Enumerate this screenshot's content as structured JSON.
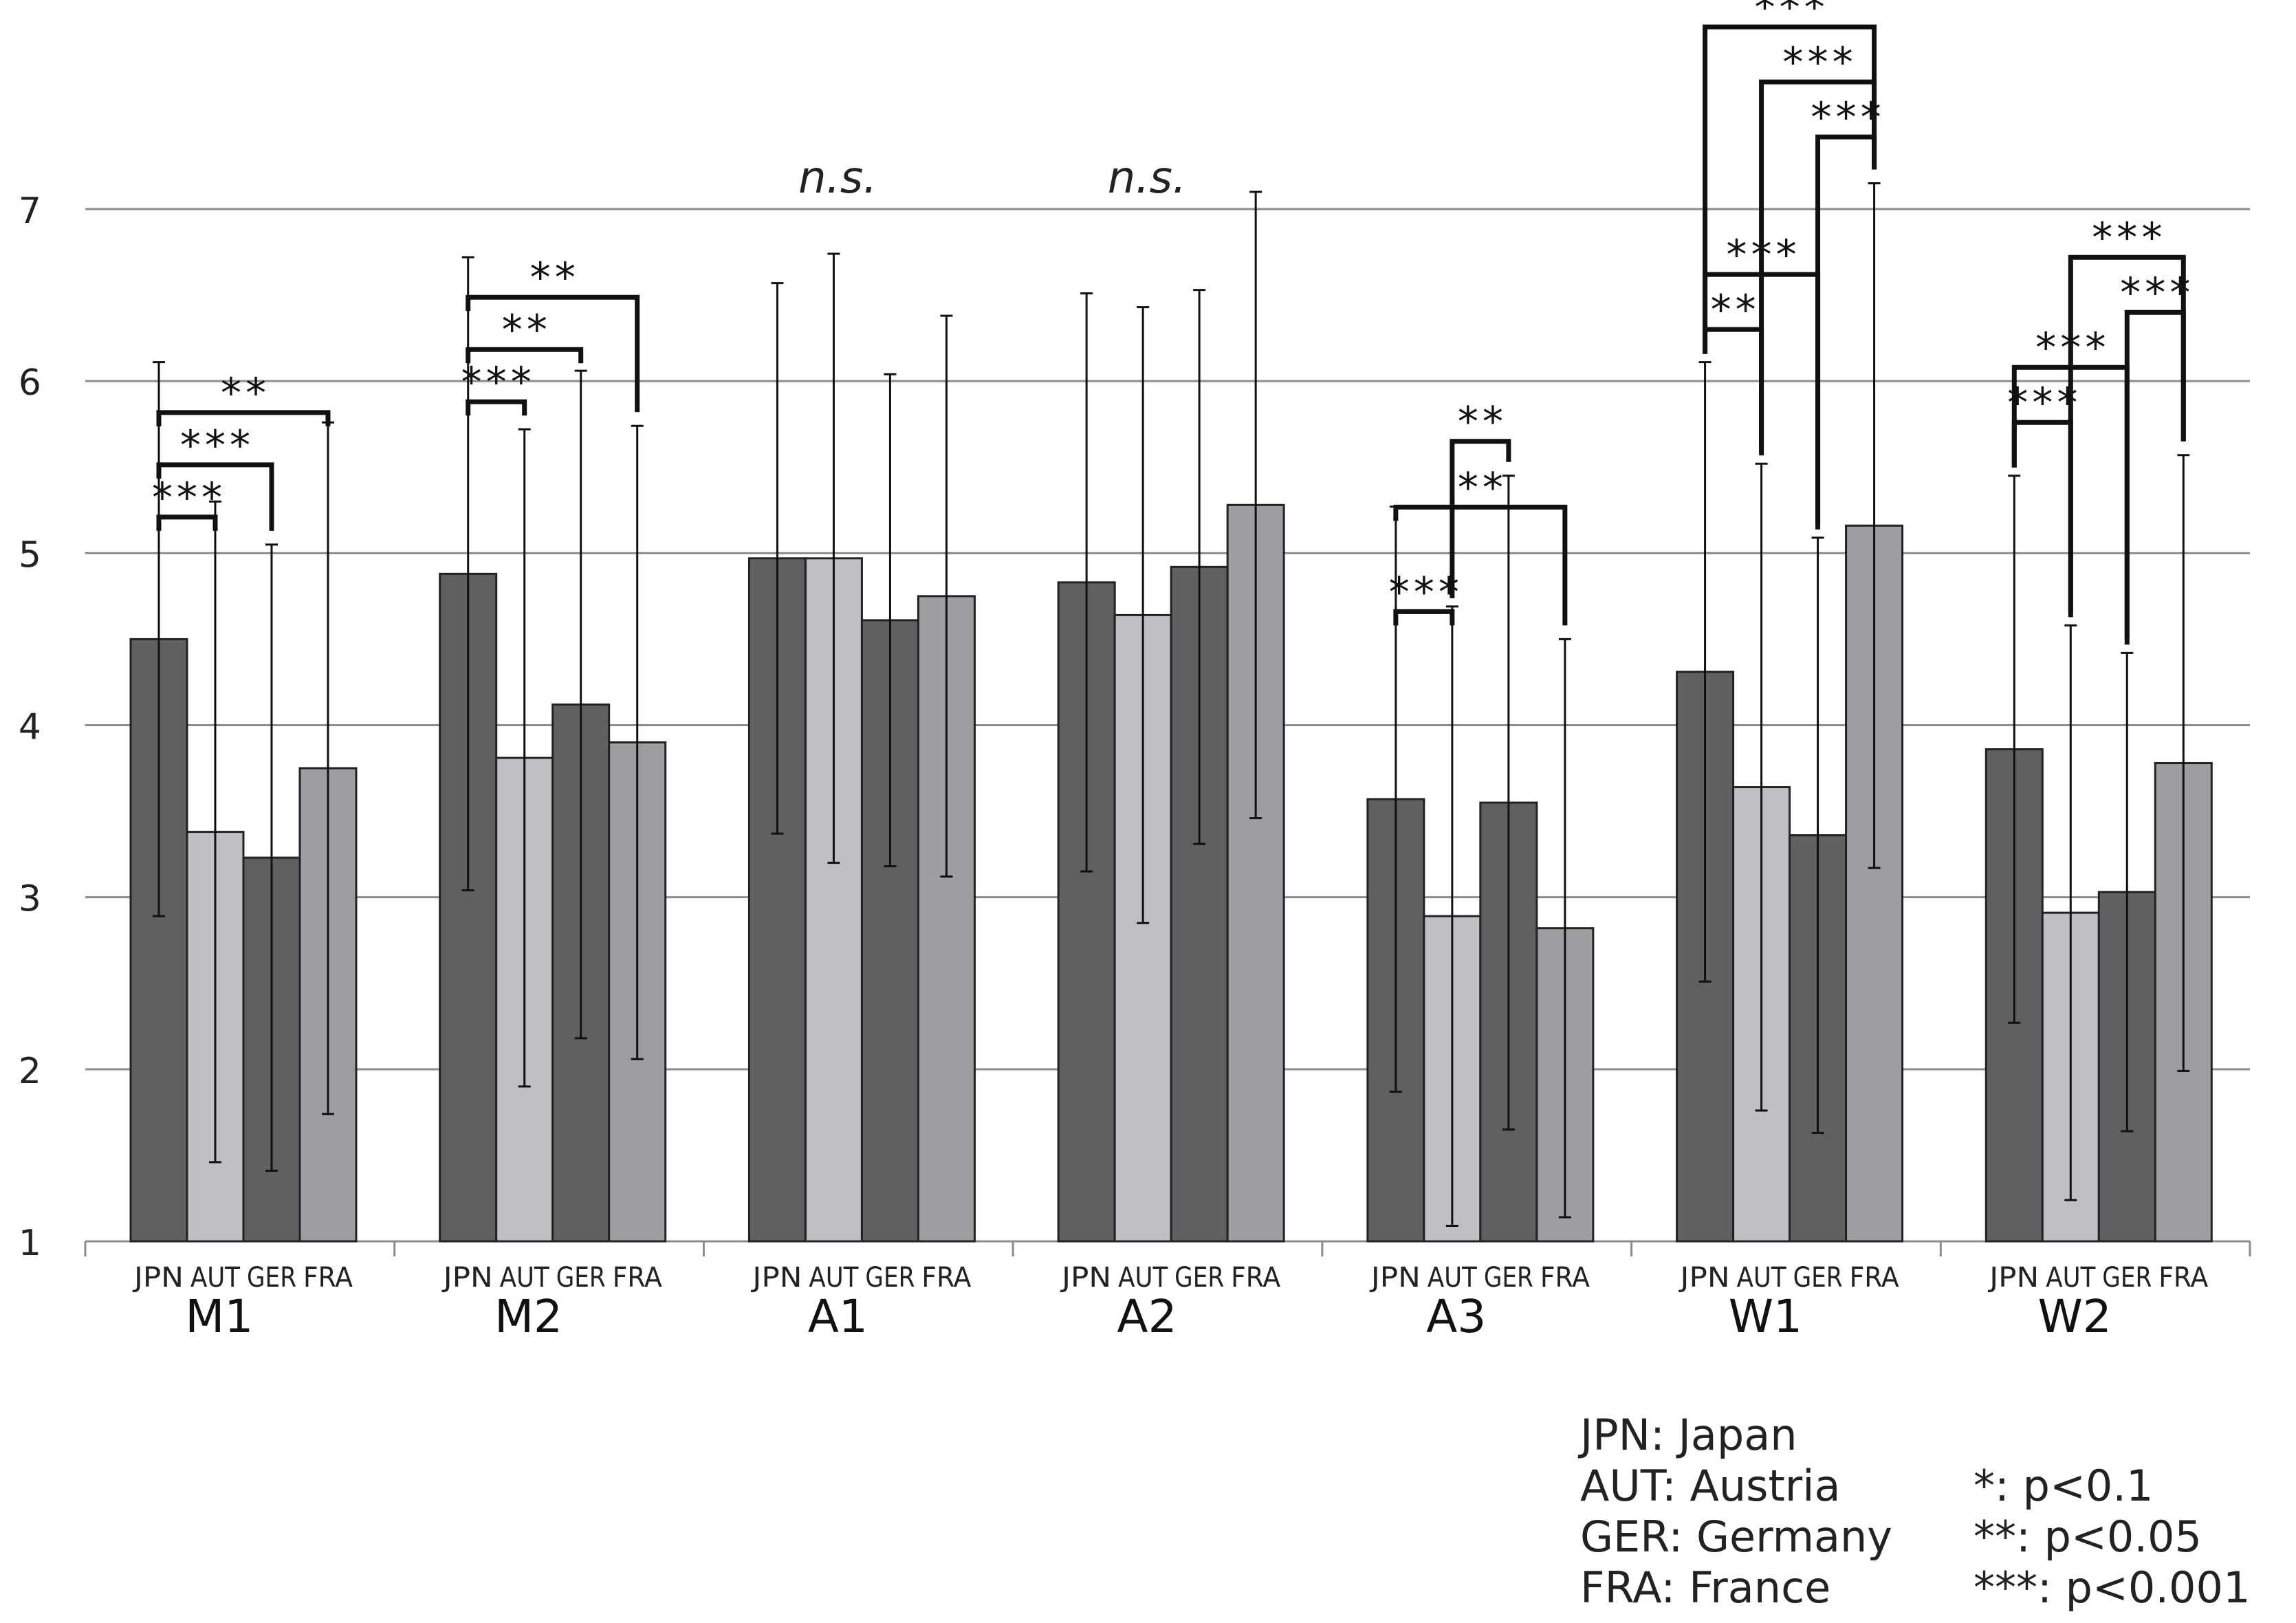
{
  "chart_data": {
    "type": "bar",
    "title": "",
    "xlabel": "",
    "ylabel": "",
    "ylim": [
      1,
      7
    ],
    "yticks": [
      1,
      2,
      3,
      4,
      5,
      6,
      7
    ],
    "grid": true,
    "countries": [
      "JPN",
      "AUT",
      "GER",
      "FRA"
    ],
    "colors": {
      "JPN": "#5f6062",
      "AUT": "#bfc0c3",
      "GER": "#5f6062",
      "FRA": "#9d9ea1"
    },
    "groups": [
      {
        "name": "M1",
        "means": [
          4.5,
          3.38,
          3.23,
          3.75
        ],
        "errors": [
          1.61,
          1.92,
          1.82,
          2.01
        ],
        "brackets": [
          {
            "from": 0,
            "to": 1,
            "label": "***",
            "level": 1
          },
          {
            "from": 0,
            "to": 2,
            "label": "***",
            "level": 2
          },
          {
            "from": 0,
            "to": 3,
            "label": "**",
            "level": 3
          }
        ]
      },
      {
        "name": "M2",
        "means": [
          4.88,
          3.81,
          4.12,
          3.9
        ],
        "errors": [
          1.84,
          1.91,
          1.94,
          1.84
        ],
        "brackets": [
          {
            "from": 0,
            "to": 1,
            "label": "***",
            "level": 1
          },
          {
            "from": 0,
            "to": 2,
            "label": "**",
            "level": 2
          },
          {
            "from": 0,
            "to": 3,
            "label": "**",
            "level": 3
          }
        ]
      },
      {
        "name": "A1",
        "means": [
          4.97,
          4.97,
          4.61,
          4.75
        ],
        "errors": [
          1.6,
          1.77,
          1.43,
          1.63
        ],
        "brackets": [],
        "ns": "n.s."
      },
      {
        "name": "A2",
        "means": [
          4.83,
          4.64,
          4.92,
          5.28
        ],
        "errors": [
          1.68,
          1.79,
          1.61,
          1.82
        ],
        "brackets": [],
        "ns": "n.s."
      },
      {
        "name": "A3",
        "means": [
          3.57,
          2.89,
          3.55,
          2.82
        ],
        "errors": [
          1.7,
          1.8,
          1.9,
          1.68
        ],
        "brackets": [
          {
            "from": 0,
            "to": 1,
            "label": "***",
            "level": 1
          },
          {
            "from": 1,
            "to": 2,
            "label": "**",
            "level": 0
          },
          {
            "from": 0,
            "to": 3,
            "label": "**",
            "level": 3
          }
        ]
      },
      {
        "name": "W1",
        "means": [
          4.31,
          3.64,
          3.36,
          5.16
        ],
        "errors": [
          1.8,
          1.88,
          1.73,
          1.99
        ],
        "brackets": [
          {
            "from": 0,
            "to": 1,
            "label": "**",
            "level": 1
          },
          {
            "from": 0,
            "to": 2,
            "label": "***",
            "level": 2
          },
          {
            "from": 2,
            "to": 3,
            "label": "***",
            "level": 4
          },
          {
            "from": 1,
            "to": 3,
            "label": "***",
            "level": 5
          },
          {
            "from": 0,
            "to": 3,
            "label": "***",
            "level": 6
          }
        ]
      },
      {
        "name": "W2",
        "means": [
          3.86,
          2.91,
          3.03,
          3.78
        ],
        "errors": [
          1.59,
          1.67,
          1.39,
          1.79
        ],
        "brackets": [
          {
            "from": 0,
            "to": 1,
            "label": "***",
            "level": 1
          },
          {
            "from": 0,
            "to": 2,
            "label": "***",
            "level": 2
          },
          {
            "from": 2,
            "to": 3,
            "label": "***",
            "level": 3
          },
          {
            "from": 1,
            "to": 3,
            "label": "***",
            "level": 4
          }
        ]
      }
    ]
  },
  "legend": {
    "countries": [
      "JPN: Japan",
      "AUT: Austria",
      "GER: Germany",
      "FRA: France"
    ],
    "significance": [
      "*: p<0.1",
      "**: p<0.05",
      "***: p<0.001"
    ]
  }
}
